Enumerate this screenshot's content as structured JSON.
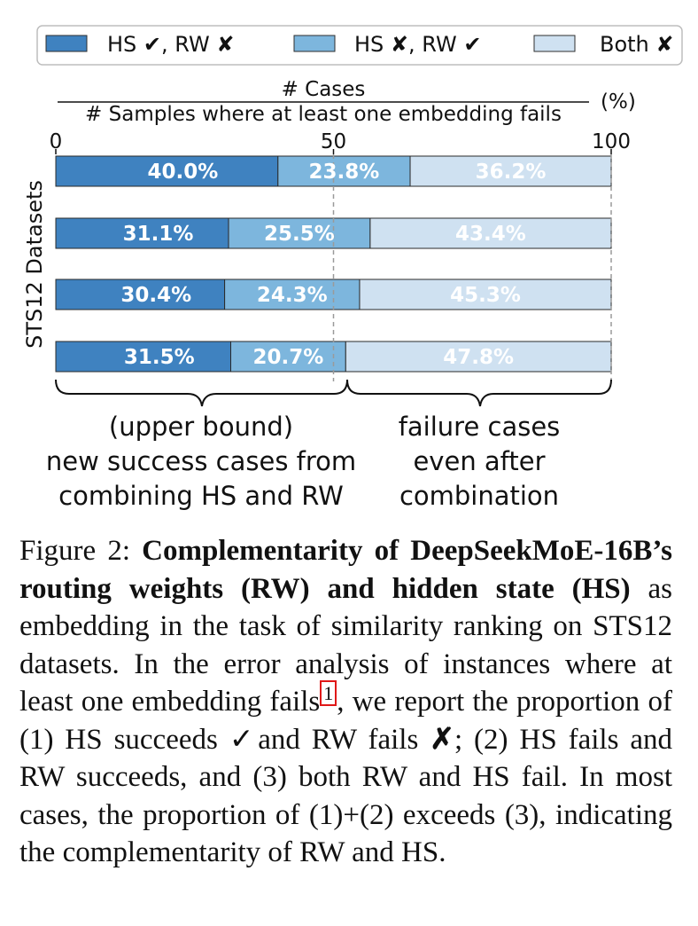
{
  "chart_data": {
    "type": "bar",
    "orientation": "horizontal",
    "stacked": true,
    "ylabel": "STS12 Datasets",
    "xlabel_numerator": "# Cases",
    "xlabel_denominator": "# Samples where at least one embedding fails",
    "xlabel_unit": "(%)",
    "xlim": [
      0,
      100
    ],
    "xticks": [
      0,
      50,
      100
    ],
    "xtick_labels": [
      "0",
      "50",
      "100"
    ],
    "reference_lines": [
      50,
      100
    ],
    "legend": [
      "HS ✔, RW ✘",
      "HS ✘, RW ✔",
      "Both ✘"
    ],
    "series": [
      {
        "name": "HS ✔, RW ✘",
        "color": "#3f82c0",
        "values": [
          40.0,
          31.1,
          30.4,
          31.5
        ],
        "labels": [
          "40.0%",
          "31.1%",
          "30.4%",
          "31.5%"
        ]
      },
      {
        "name": "HS ✘, RW ✔",
        "color": "#7db6dd",
        "values": [
          23.8,
          25.5,
          24.3,
          20.7
        ],
        "labels": [
          "23.8%",
          "25.5%",
          "24.3%",
          "20.7%"
        ]
      },
      {
        "name": "Both ✘",
        "color": "#cfe1f1",
        "values": [
          36.2,
          43.4,
          45.3,
          47.8
        ],
        "labels": [
          "36.2%",
          "43.4%",
          "45.3%",
          "47.8%"
        ]
      }
    ],
    "annotations": {
      "left_brace_lines": [
        "(upper bound)",
        "new success cases from",
        "combining HS and RW"
      ],
      "right_brace_lines": [
        "failure cases",
        "even after",
        "combination"
      ]
    }
  },
  "caption": {
    "label": "Figure 2:",
    "bold_text": "Complementarity of DeepSeekMoE-16B’s routing weights (RW) and hidden state (HS)",
    "text_1": "as embedding in the task of similarity ranking on STS12 datasets. In the error analysis of instances where at least one embedding fails",
    "footnote": "1",
    "text_2": ", we report the proportion of (1) HS succeeds",
    "check_glyph": "✓",
    "text_3": "and RW fails",
    "cross_glyph": "✗",
    "text_4": "; (2) HS fails and RW succeeds, and (3) both RW and HS fail. In most cases, the proportion of (1)+(2) exceeds (3), indicating the complementarity of RW and HS."
  }
}
